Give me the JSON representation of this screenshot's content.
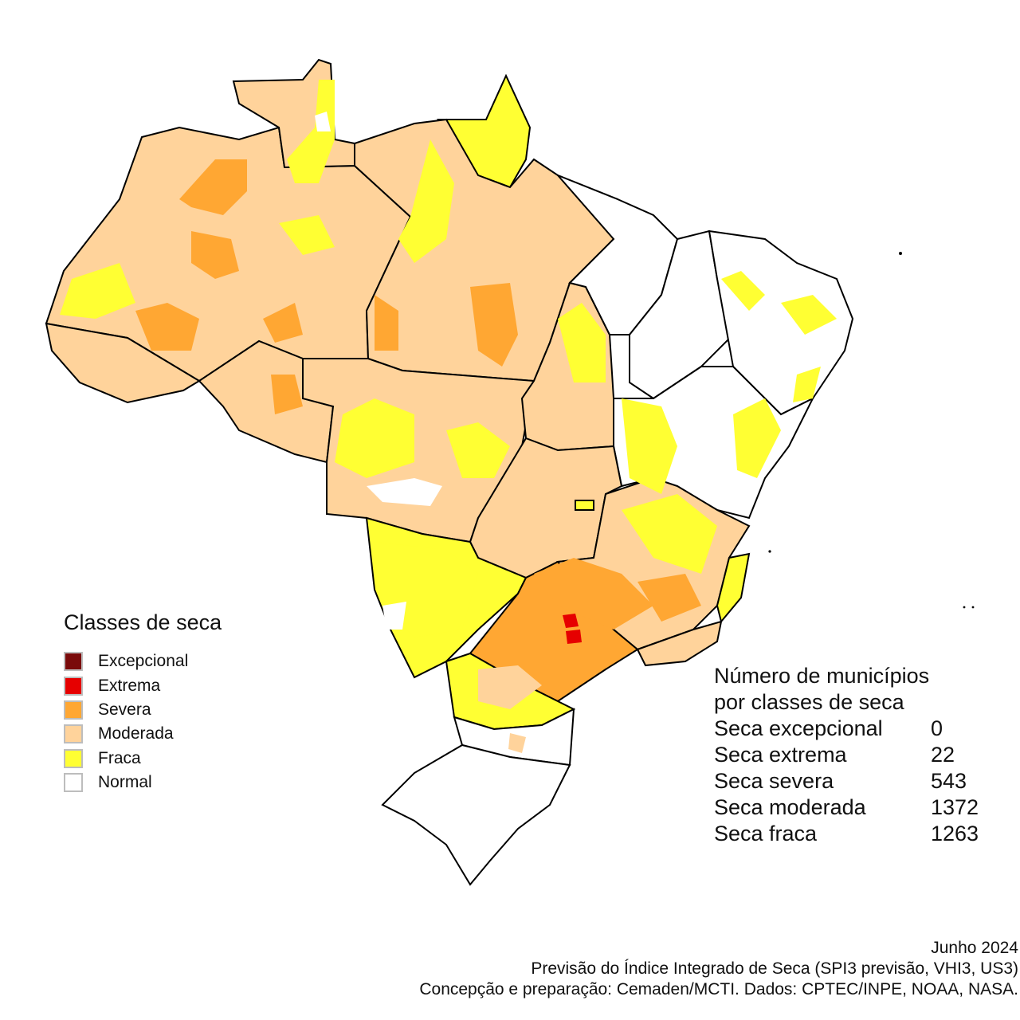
{
  "legend": {
    "title": "Classes de seca",
    "items": [
      {
        "label": "Excepcional",
        "color": "#7a0a0a"
      },
      {
        "label": "Extrema",
        "color": "#e60000"
      },
      {
        "label": "Severa",
        "color": "#ffa733"
      },
      {
        "label": "Moderada",
        "color": "#ffd39b"
      },
      {
        "label": "Fraca",
        "color": "#ffff33"
      },
      {
        "label": "Normal",
        "color": "#ffffff"
      }
    ]
  },
  "stats": {
    "title_line1": "Número de municípios",
    "title_line2": "por classes de seca",
    "rows": [
      {
        "label": "Seca excepcional",
        "value": "0"
      },
      {
        "label": "Seca extrema",
        "value": "22"
      },
      {
        "label": "Seca severa",
        "value": "543"
      },
      {
        "label": "Seca moderada",
        "value": "1372"
      },
      {
        "label": "Seca fraca",
        "value": "1263"
      }
    ]
  },
  "credits": {
    "date": "Junho 2024",
    "product": "Previsão do Índice Integrado de Seca (SPI3 previsão, VHI3, US3)",
    "source": "Concepção e preparação: Cemaden/MCTI. Dados: CPTEC/INPE, NOAA, NASA."
  }
}
